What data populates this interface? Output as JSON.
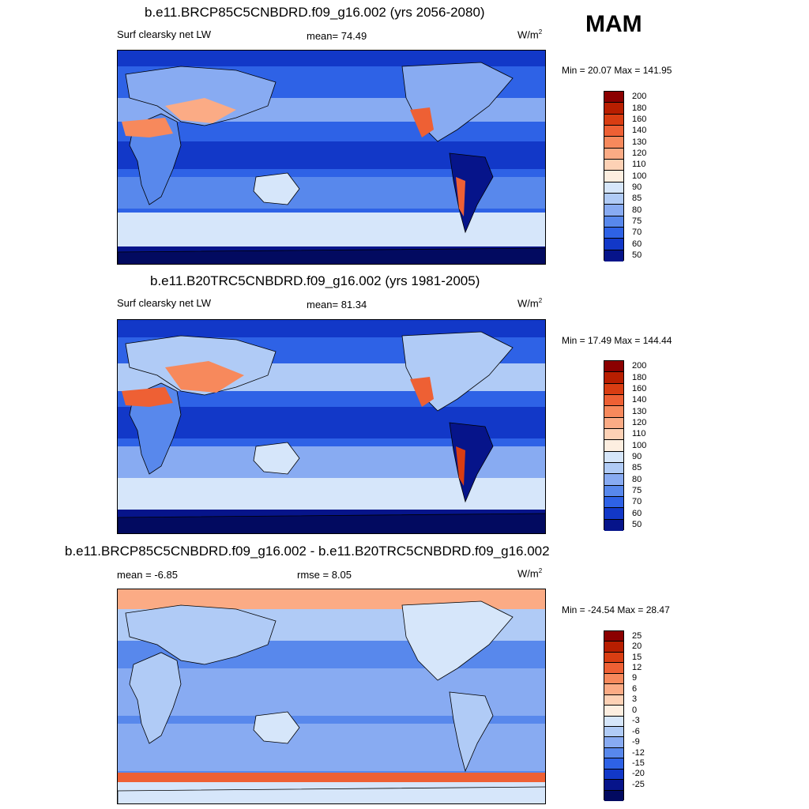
{
  "season": "MAM",
  "panels": [
    {
      "title": "b.e11.BRCP85C5CNBDRD.f09_g16.002 (yrs 2056-2080)",
      "variable": "Surf clearsky net LW",
      "mean": "mean=  74.49",
      "units": "W/m",
      "units_sup": "2",
      "minmax": "Min =  20.07 Max = 141.95",
      "colorbar": {
        "labels": [
          "200",
          "180",
          "160",
          "140",
          "130",
          "120",
          "110",
          "100",
          "90",
          "85",
          "80",
          "75",
          "70",
          "60",
          "50"
        ],
        "colors": [
          "#8b0000",
          "#b81e00",
          "#d93d12",
          "#ee6034",
          "#f7895c",
          "#fbab85",
          "#fdd1b5",
          "#fdeee0",
          "#d6e6fa",
          "#b0cbf6",
          "#88abf2",
          "#5888ec",
          "#2e62e6",
          "#1238c8",
          "#06148a"
        ]
      }
    },
    {
      "title": "b.e11.B20TRC5CNBDRD.f09_g16.002 (yrs 1981-2005)",
      "variable": "Surf clearsky net LW",
      "mean": "mean=  81.34",
      "units": "W/m",
      "units_sup": "2",
      "minmax": "Min =  17.49 Max = 144.44",
      "colorbar": {
        "labels": [
          "200",
          "180",
          "160",
          "140",
          "130",
          "120",
          "110",
          "100",
          "90",
          "85",
          "80",
          "75",
          "70",
          "60",
          "50"
        ],
        "colors": [
          "#8b0000",
          "#b81e00",
          "#d93d12",
          "#ee6034",
          "#f7895c",
          "#fbab85",
          "#fdd1b5",
          "#fdeee0",
          "#d6e6fa",
          "#b0cbf6",
          "#88abf2",
          "#5888ec",
          "#2e62e6",
          "#1238c8",
          "#06148a"
        ]
      }
    },
    {
      "title": "b.e11.BRCP85C5CNBDRD.f09_g16.002 - b.e11.B20TRC5CNBDRD.f09_g16.002",
      "mean": "mean =  -6.85",
      "rmse": "rmse =   8.05",
      "units": "W/m",
      "units_sup": "2",
      "minmax": "Min = -24.54 Max =  28.47",
      "colorbar": {
        "labels": [
          "25",
          "20",
          "15",
          "12",
          "9",
          "6",
          "3",
          "0",
          "-3",
          "-6",
          "-9",
          "-12",
          "-15",
          "-20",
          "-25"
        ],
        "colors": [
          "#8b0000",
          "#b81e00",
          "#d93d12",
          "#ee6034",
          "#f7895c",
          "#fbab85",
          "#fdd1b5",
          "#fdeee0",
          "#d6e6fa",
          "#b0cbf6",
          "#88abf2",
          "#5888ec",
          "#2e62e6",
          "#1238c8",
          "#06148a",
          "#020a60"
        ]
      }
    }
  ],
  "colors": {
    "deep_blue": "#06148a",
    "mid_blue": "#2e62e6",
    "light_blue": "#b0cbf6",
    "pale": "#d6e6fa",
    "warm": "#f7895c",
    "coast": "#000000"
  }
}
